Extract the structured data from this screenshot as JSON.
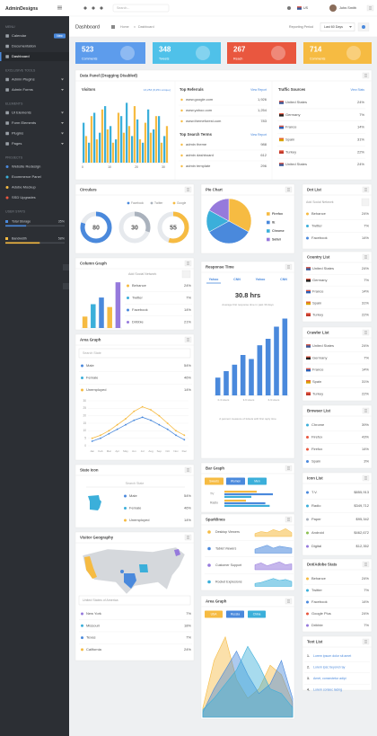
{
  "header": {
    "logo": "AdminDesigns",
    "search": "Search...",
    "lang": "US",
    "user": "John.Smith"
  },
  "sidebar": {
    "sections": [
      {
        "title": "MENU",
        "items": [
          {
            "label": "Calendar",
            "badge": "New"
          },
          {
            "label": "Documentation"
          },
          {
            "label": "Dashboard",
            "active": true
          }
        ]
      },
      {
        "title": "EXCLUSIVE TOOLS",
        "items": [
          {
            "label": "Admin Plugins",
            "has_submenu": true
          },
          {
            "label": "Admin Forms",
            "has_submenu": true
          }
        ]
      },
      {
        "title": "ELEMENTS",
        "items": [
          {
            "label": "UI Elements",
            "has_submenu": true
          },
          {
            "label": "Form Elements",
            "has_submenu": true
          },
          {
            "label": "Plugins",
            "has_submenu": true
          },
          {
            "label": "Pages",
            "has_submenu": true
          }
        ]
      },
      {
        "title": "PROJECTS",
        "items": [
          {
            "label": "Website Redesign",
            "dot": "#4a89dc"
          },
          {
            "label": "Ecommerce Panel",
            "dot": "#3bafda"
          },
          {
            "label": "Adobe Mockup",
            "dot": "#f6bb42"
          },
          {
            "label": "SSD Upgrades",
            "dot": "#e9573f"
          }
        ]
      }
    ],
    "stats": {
      "title": "USER STATS",
      "items": [
        {
          "label": "Total Storage",
          "value": 35,
          "value_label": "35%",
          "color": "#4a89dc"
        },
        {
          "label": "Bandwidth",
          "value": 58,
          "value_label": "58%",
          "color": "#f6bb42"
        }
      ]
    }
  },
  "topbar": {
    "title": "Dashboard",
    "crumbs": [
      "Home",
      "Dashboard"
    ],
    "period_label": "Reporting Period",
    "period": "Last 60 Days"
  },
  "tiles": [
    {
      "value": 523,
      "label": "Comments",
      "color": "#5d9cec"
    },
    {
      "value": 348,
      "label": "Tweets",
      "color": "#4fc1e9"
    },
    {
      "value": 267,
      "label": "Reach",
      "color": "#e9573f"
    },
    {
      "value": 714,
      "label": "Comments",
      "color": "#f6bb42"
    }
  ],
  "data_panel": {
    "title": "Data Panel (Dragging Disabled)",
    "visitors": {
      "type": "bar",
      "title": "Visitors",
      "summary": "13,253 (8,251 unique)",
      "x": [
        0,
        2,
        4,
        6,
        8,
        10,
        12,
        14,
        16,
        18,
        20,
        22,
        24,
        26,
        28,
        30
      ],
      "xlim": [
        0,
        32
      ],
      "xticks": [
        0,
        10,
        20,
        30
      ],
      "ylim": [
        0,
        100
      ],
      "series": [
        {
          "color": "#3bafda",
          "values": [
            60,
            30,
            75,
            45,
            85,
            55,
            35,
            70,
            90,
            40,
            65,
            30,
            80,
            50,
            70,
            40
          ]
        },
        {
          "color": "#f6bb42",
          "values": [
            40,
            70,
            35,
            80,
            50,
            30,
            75,
            45,
            55,
            85,
            35,
            60,
            45,
            70,
            30,
            55
          ]
        }
      ]
    },
    "referrals": {
      "title": "Top Referrals",
      "link": "View Report",
      "rows": [
        {
          "label": "www.google.com",
          "value": "1,926"
        },
        {
          "label": "www.yahoo.com",
          "value": "1,254"
        },
        {
          "label": "www.themeforest.com",
          "value": "783"
        }
      ]
    },
    "search_terms": {
      "title": "Top Search Terms",
      "link": "View Report",
      "rows": [
        {
          "label": "admin theme",
          "value": "988"
        },
        {
          "label": "admin dashboard",
          "value": "612"
        },
        {
          "label": "admin template",
          "value": "296"
        }
      ]
    },
    "traffic": {
      "title": "Traffic Sources",
      "link": "View Stats",
      "rows": [
        {
          "label": "United States",
          "value": "24%"
        },
        {
          "label": "Germany",
          "value": "7%"
        },
        {
          "label": "France",
          "value": "14%"
        },
        {
          "label": "Spain",
          "value": "31%"
        },
        {
          "label": "Turkey",
          "value": "22%"
        },
        {
          "label": "United States",
          "value": "24%"
        }
      ]
    }
  },
  "circulars": {
    "type": "donut",
    "title": "Circulars",
    "legend": [
      "Facebook",
      "Twitter",
      "Google"
    ],
    "colors": [
      "#4a89dc",
      "#aab2bd",
      "#f6bb42"
    ],
    "values": [
      80,
      30,
      55
    ]
  },
  "column_graph": {
    "type": "bar",
    "title": "Column Graph",
    "values": [
      12,
      25,
      32,
      22,
      48
    ],
    "colors": [
      "#f6bb42",
      "#3bafda",
      "#4a89dc",
      "#f6bb42",
      "#967adc"
    ],
    "ylim": [
      0,
      50
    ],
    "add": "Add Social Network",
    "rows": [
      {
        "label": "Behance",
        "value": "24%",
        "color": "#f6bb42"
      },
      {
        "label": "Twitter",
        "value": "7%",
        "color": "#3bafda"
      },
      {
        "label": "Facebook",
        "value": "14%",
        "color": "#4a89dc"
      },
      {
        "label": "Dribble",
        "value": "21%",
        "color": "#967adc"
      }
    ]
  },
  "area_graph": {
    "title": "Area Graph",
    "search": "Search State",
    "rows": [
      {
        "label": "Male",
        "value": "54%",
        "color": "#4a89dc"
      },
      {
        "label": "Female",
        "value": "46%",
        "color": "#3bafda"
      },
      {
        "label": "Unemployed",
        "value": "14%",
        "color": "#f6bb42"
      }
    ],
    "chart": {
      "type": "line",
      "categories": [
        "Jan",
        "Feb",
        "Mar",
        "Apr",
        "May",
        "Jun",
        "Jul",
        "Aug",
        "Sep",
        "Oct",
        "Nov",
        "Dec"
      ],
      "ylim": [
        0,
        30
      ],
      "yticks": [
        0,
        5,
        10,
        15,
        20,
        25,
        30
      ],
      "series": [
        {
          "color": "#f6bb42",
          "values": [
            5,
            7,
            10,
            14,
            18,
            23,
            26,
            24,
            20,
            15,
            10,
            7
          ]
        },
        {
          "color": "#4a89dc",
          "values": [
            3,
            5,
            8,
            11,
            14,
            17,
            19,
            17,
            14,
            11,
            7,
            4
          ]
        }
      ]
    }
  },
  "state_icon": {
    "title": "State Icon",
    "search": "Search State",
    "rows": [
      {
        "label": "Male",
        "value": "54%",
        "color": "#4a89dc"
      },
      {
        "label": "Female",
        "value": "46%",
        "color": "#3bafda"
      },
      {
        "label": "Unemployed",
        "value": "14%",
        "color": "#f6bb42"
      }
    ]
  },
  "visitor_geo": {
    "title": "Visitor Geography",
    "select": "United States of America",
    "rows": [
      {
        "label": "New York",
        "value": "7%",
        "color": "#967adc"
      },
      {
        "label": "Missouri",
        "value": "18%",
        "color": "#3bafda"
      },
      {
        "label": "Texas",
        "value": "7%",
        "color": "#4a89dc"
      },
      {
        "label": "California",
        "value": "24%",
        "color": "#f6bb42"
      }
    ]
  },
  "pie": {
    "type": "pie",
    "title": "Pie Chart",
    "categories": [
      "Firefox",
      "IE",
      "Chrome",
      "Safari"
    ],
    "values": [
      33,
      34,
      16,
      17
    ],
    "colors": [
      "#f6bb42",
      "#4a89dc",
      "#3bafda",
      "#967adc"
    ]
  },
  "response": {
    "type": "bar",
    "title": "Response Time",
    "tabs": [
      "Yahoo",
      "CNN",
      "Yahoo",
      "CNN"
    ],
    "headline": "30.8 hrs",
    "subtitle": "Average first response time in past 30 days",
    "categories": [
      "0-3 Hours",
      null,
      null,
      "3-6 Hours",
      null,
      null,
      "6-9 Hours",
      null,
      null
    ],
    "values": [
      22,
      30,
      38,
      50,
      45,
      62,
      70,
      85,
      95
    ],
    "color": "#4a89dc",
    "ylim": [
      0,
      100
    ],
    "footer": "A percent measure of tickets with first reply time"
  },
  "bar_graph": {
    "type": "bar",
    "orientation": "horizontal",
    "title": "Bar Graph",
    "categories": [
      "TV",
      "Radio"
    ],
    "xlim": [
      0,
      50
    ],
    "series": [
      {
        "name": "Sweets",
        "color": "#f6bb42",
        "values": [
          30,
          20
        ]
      },
      {
        "name": "Women",
        "color": "#4a89dc",
        "values": [
          45,
          38
        ]
      },
      {
        "name": "Men",
        "color": "#3bafda",
        "values": [
          25,
          42
        ]
      }
    ]
  },
  "sparklines": {
    "type": "sparkline",
    "title": "Sparklines",
    "ylim": [
      0,
      10
    ],
    "rows": [
      {
        "label": "Desktop Viewers",
        "color": "#f6bb42",
        "values": [
          3,
          5,
          4,
          7,
          5,
          8,
          4
        ]
      },
      {
        "label": "Tablet Viewers",
        "color": "#4a89dc",
        "values": [
          4,
          6,
          8,
          5,
          7,
          6,
          5
        ]
      },
      {
        "label": "Customer Support",
        "color": "#967adc",
        "values": [
          5,
          7,
          4,
          6,
          8,
          5,
          6
        ]
      },
      {
        "label": "Rocket Explosions",
        "color": "#3bafda",
        "values": [
          3,
          4,
          6,
          8,
          6,
          7,
          5
        ]
      }
    ]
  },
  "area2": {
    "type": "area",
    "title": "Area Graph",
    "ylim": [
      0,
      100
    ],
    "series": [
      {
        "name": "USA",
        "color": "#f6bb42",
        "values": [
          10,
          60,
          85,
          40,
          20,
          30,
          55,
          45,
          15
        ]
      },
      {
        "name": "Russia",
        "color": "#4a89dc",
        "values": [
          5,
          30,
          50,
          70,
          45,
          25,
          35,
          60,
          20
        ]
      },
      {
        "name": "China",
        "color": "#3bafda",
        "values": [
          8,
          20,
          35,
          50,
          75,
          55,
          30,
          25,
          10
        ]
      }
    ]
  },
  "dot_list": {
    "title": "Dot List",
    "add": "Add Social Network",
    "rows": [
      {
        "label": "Behance",
        "value": "24%",
        "color": "#f6bb42"
      },
      {
        "label": "Twitter",
        "value": "7%",
        "color": "#3bafda"
      },
      {
        "label": "Facebook",
        "value": "14%",
        "color": "#4a89dc"
      }
    ]
  },
  "country_list": {
    "title": "Country List",
    "rows": [
      {
        "label": "United States",
        "value": "24%"
      },
      {
        "label": "Germany",
        "value": "7%"
      },
      {
        "label": "France",
        "value": "14%"
      },
      {
        "label": "Spain",
        "value": "31%"
      },
      {
        "label": "Turkey",
        "value": "22%"
      }
    ]
  },
  "crawler_list": {
    "title": "Crawler List",
    "rows": [
      {
        "label": "United States",
        "value": "24%"
      },
      {
        "label": "Germany",
        "value": "7%"
      },
      {
        "label": "France",
        "value": "14%"
      },
      {
        "label": "Spain",
        "value": "31%"
      },
      {
        "label": "Turkey",
        "value": "22%"
      }
    ]
  },
  "browser_list": {
    "title": "Browser List",
    "rows": [
      {
        "label": "Chrome",
        "value": "39%",
        "color": "#3bafda"
      },
      {
        "label": "Firefox",
        "value": "43%",
        "color": "#e9573f"
      },
      {
        "label": "Firefox",
        "value": "14%",
        "color": "#e9573f"
      },
      {
        "label": "Spain",
        "value": "3%",
        "color": "#4a89dc"
      }
    ]
  },
  "icon_list": {
    "title": "Icon List",
    "rows": [
      {
        "label": "T.V.",
        "value": "$855,913",
        "color": "#4a89dc"
      },
      {
        "label": "Radio",
        "value": "$349,712",
        "color": "#3bafda"
      },
      {
        "label": "Paper",
        "value": "$95,342",
        "color": "#aab2bd"
      },
      {
        "label": "Android",
        "value": "$462,672",
        "color": "#8cc152"
      },
      {
        "label": "Digital",
        "value": "$12,352",
        "color": "#967adc"
      }
    ]
  },
  "adobe_stats": {
    "title": "Dot/Adobe Stats",
    "rows": [
      {
        "label": "Behance",
        "value": "24%",
        "color": "#f6bb42"
      },
      {
        "label": "Twitter",
        "value": "7%",
        "color": "#3bafda"
      },
      {
        "label": "Facebook",
        "value": "14%",
        "color": "#4a89dc"
      },
      {
        "label": "Google Plus",
        "value": "24%",
        "color": "#e9573f"
      },
      {
        "label": "Dribble",
        "value": "7%",
        "color": "#967adc"
      }
    ]
  },
  "text_list": {
    "title": "Text List",
    "items": [
      {
        "n": "1.",
        "text": "Lorem ipsum dolor sit amet"
      },
      {
        "n": "2.",
        "text": "Lorem ipsc beyond ray"
      },
      {
        "n": "3.",
        "text": "Amet, consectetur adipi"
      },
      {
        "n": "4.",
        "text": "Lorem consec lacing"
      }
    ]
  }
}
